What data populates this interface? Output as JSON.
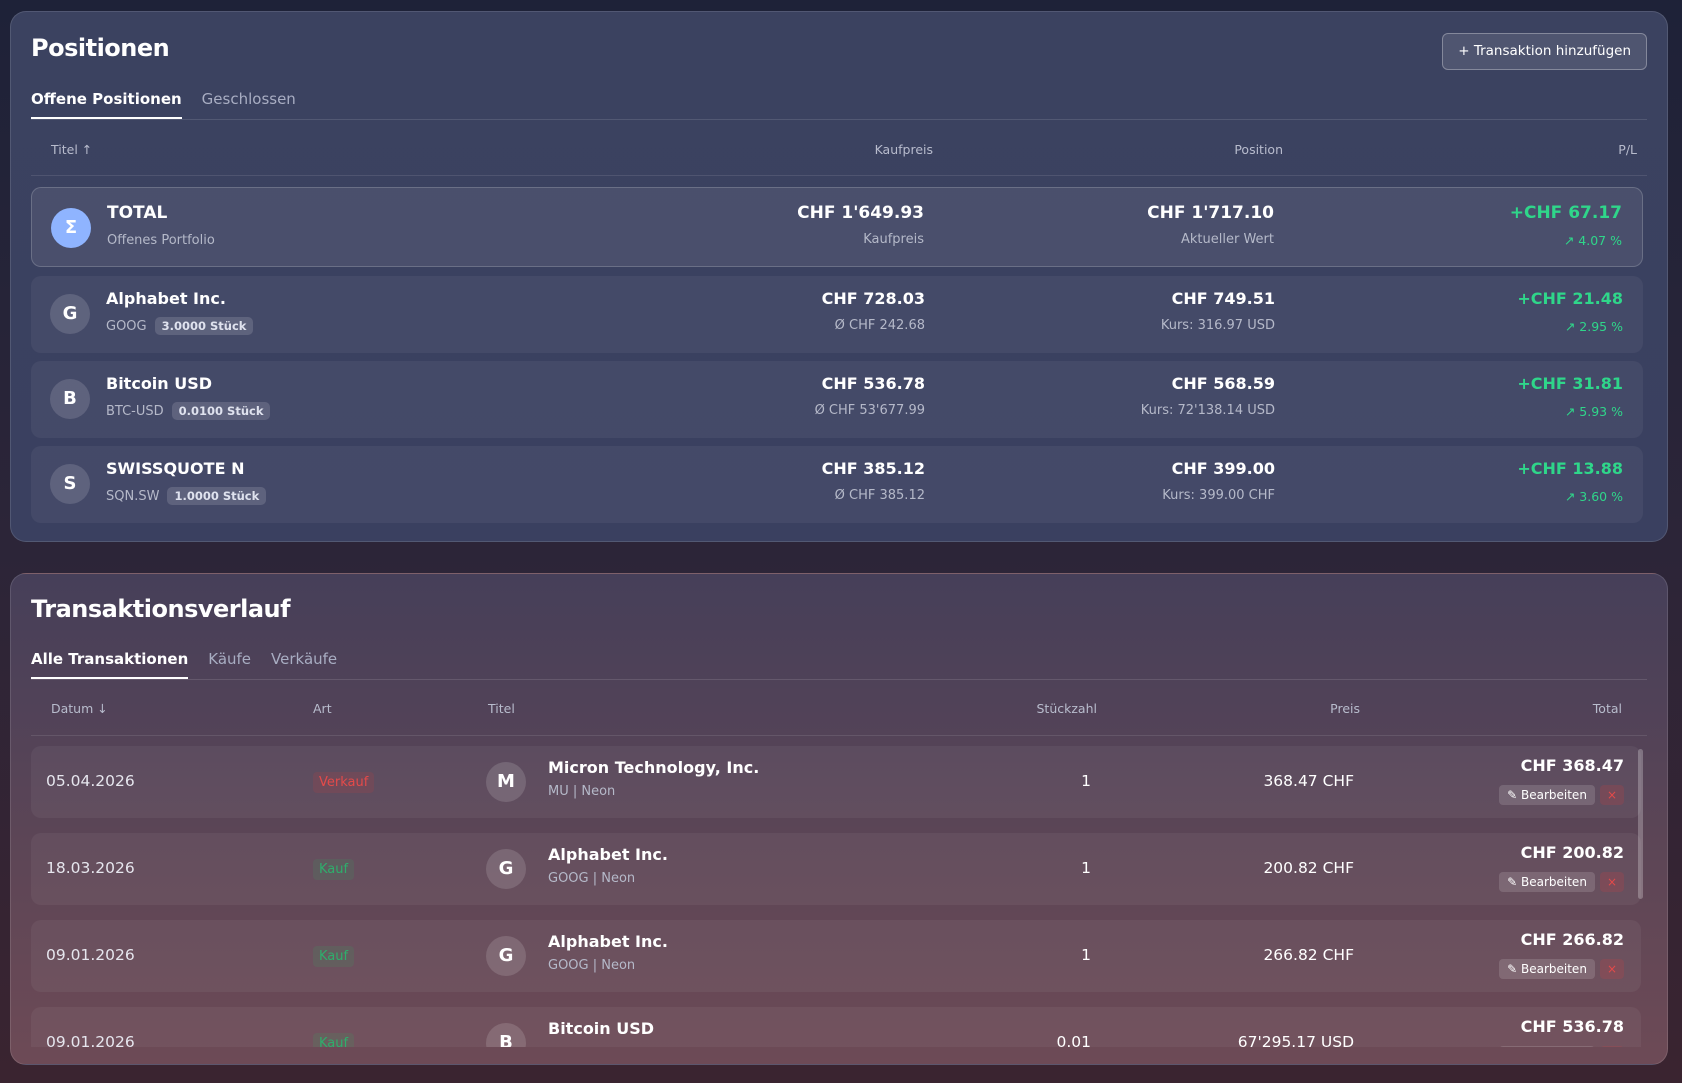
{
  "positions": {
    "title": "Positionen",
    "add_button": "+ Transaktion hinzufügen",
    "tabs": [
      "Offene Positionen",
      "Geschlossen"
    ],
    "columns": [
      "Titel ↑",
      "Kaufpreis",
      "Position",
      "P/L"
    ],
    "total": {
      "icon": "Σ",
      "name": "TOTAL",
      "subtitle": "Offenes Portfolio",
      "cost": "CHF 1'649.93",
      "cost_label": "Kaufpreis",
      "value": "CHF 1'717.10",
      "value_label": "Aktueller Wert",
      "pl": "+CHF 67.17",
      "pl_pct": "↗ 4.07 %"
    },
    "rows": [
      {
        "icon": "G",
        "name": "Alphabet Inc.",
        "ticker": "GOOG",
        "qty": "3.0000 Stück",
        "cost": "CHF 728.03",
        "avg": "Ø CHF 242.68",
        "value": "CHF 749.51",
        "rate": "Kurs: 316.97 USD",
        "pl": "+CHF 21.48",
        "pl_pct": "↗ 2.95 %"
      },
      {
        "icon": "B",
        "name": "Bitcoin USD",
        "ticker": "BTC-USD",
        "qty": "0.0100 Stück",
        "cost": "CHF 536.78",
        "avg": "Ø CHF 53'677.99",
        "value": "CHF 568.59",
        "rate": "Kurs: 72'138.14 USD",
        "pl": "+CHF 31.81",
        "pl_pct": "↗ 5.93 %"
      },
      {
        "icon": "S",
        "name": "SWISSQUOTE N",
        "ticker": "SQN.SW",
        "qty": "1.0000 Stück",
        "cost": "CHF 385.12",
        "avg": "Ø CHF 385.12",
        "value": "CHF 399.00",
        "rate": "Kurs: 399.00 CHF",
        "pl": "+CHF 13.88",
        "pl_pct": "↗ 3.60 %"
      }
    ]
  },
  "transactions": {
    "title": "Transaktionsverlauf",
    "tabs": [
      "Alle Transaktionen",
      "Käufe",
      "Verkäufe"
    ],
    "columns": [
      "Datum ↓",
      "Art",
      "Titel",
      "Stückzahl",
      "Preis",
      "Total"
    ],
    "edit_label": "✎ Bearbeiten",
    "delete_label": "×",
    "rows": [
      {
        "date": "05.04.2026",
        "type": "Verkauf",
        "icon": "M",
        "name": "Micron Technology, Inc.",
        "sub": "MU | Neon",
        "qty": "1",
        "price": "368.47 CHF",
        "total": "CHF 368.47"
      },
      {
        "date": "18.03.2026",
        "type": "Kauf",
        "icon": "G",
        "name": "Alphabet Inc.",
        "sub": "GOOG | Neon",
        "qty": "1",
        "price": "200.82 CHF",
        "total": "CHF 200.82"
      },
      {
        "date": "09.01.2026",
        "type": "Kauf",
        "icon": "G",
        "name": "Alphabet Inc.",
        "sub": "GOOG | Neon",
        "qty": "1",
        "price": "266.82 CHF",
        "total": "CHF 266.82"
      },
      {
        "date": "09.01.2026",
        "type": "Kauf",
        "icon": "B",
        "name": "Bitcoin USD",
        "qty": "0.01",
        "price": "67'295.17 USD",
        "total": "CHF 536.78"
      }
    ]
  }
}
